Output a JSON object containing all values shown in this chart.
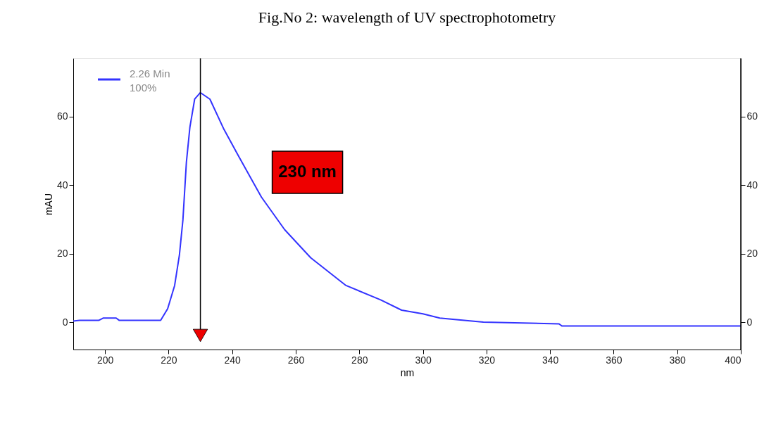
{
  "chart_data": {
    "type": "line",
    "title": "Fig.No 2: wavelength of UV spectrophotometry",
    "xlabel": "nm",
    "ylabel": "mAU",
    "x": [
      190,
      192,
      198,
      199.5,
      203.5,
      204.5,
      217.5,
      219.7,
      221.9,
      223.4,
      224.5,
      225.6,
      226.7,
      228.2,
      230,
      233,
      237.4,
      241.8,
      249.2,
      256.5,
      264.7,
      275.8,
      286.7,
      293.3,
      300,
      305.3,
      310,
      319,
      342.8,
      343.7,
      400
    ],
    "series": [
      {
        "name": "2.26 Min\n100%",
        "color": "#3333ff",
        "values": [
          0.3,
          0.5,
          0.5,
          1.2,
          1.2,
          0.5,
          0.5,
          3.9,
          10.7,
          19.6,
          29.8,
          46.7,
          56.9,
          65.1,
          67,
          65.1,
          56.3,
          48.8,
          36.5,
          27,
          18.8,
          10.7,
          6.5,
          3.5,
          2.4,
          1.2,
          0.8,
          0,
          -0.5,
          -1.1,
          -1.1
        ]
      }
    ],
    "xlim": [
      190,
      400
    ],
    "xticks": [
      200,
      220,
      240,
      260,
      280,
      300,
      320,
      340,
      360,
      380,
      400
    ],
    "ylim": [
      -8,
      77
    ],
    "yticks": [
      0,
      20,
      40,
      60
    ],
    "y2lim": [
      -8,
      77
    ],
    "y2ticks": [
      0,
      20,
      40,
      60
    ],
    "ref_lines": [
      {
        "axis": "x",
        "value": 230,
        "label": "230 nm",
        "color": "#000000"
      }
    ],
    "legend": "top left",
    "grid": false,
    "line_style": "solid"
  }
}
